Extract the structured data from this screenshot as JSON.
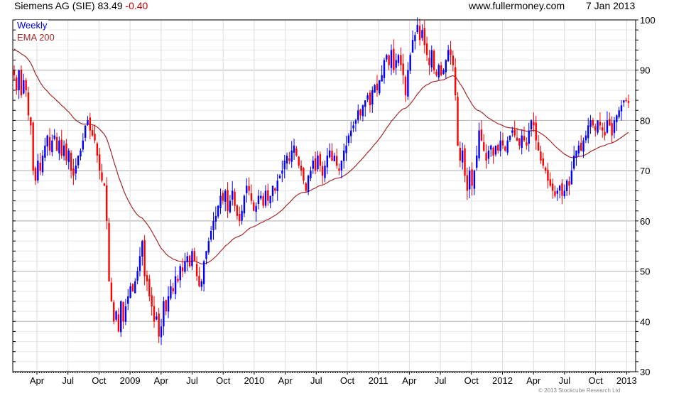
{
  "header": {
    "title": "Siemens AG (SIE) 83.49",
    "change": "-0.40",
    "site": "www.fullermoney.com",
    "date": "7 Jan 2013"
  },
  "legend": {
    "frequency": "Weekly",
    "indicator": "EMA 200"
  },
  "footer": {
    "copyright": "© 2013 Stockcube Research Ltd"
  },
  "colors": {
    "up": "#0000ff",
    "down": "#ff0000",
    "ema": "#a52a2a",
    "change": "#cc0000"
  },
  "chart_data": {
    "type": "candlestick",
    "title": "Siemens AG (SIE) weekly",
    "ylim": [
      30,
      100
    ],
    "y_ticks": [
      30,
      40,
      50,
      60,
      70,
      80,
      90,
      100
    ],
    "y_minor_step": 2,
    "x_tick_labels": [
      "Apr",
      "Jul",
      "Oct",
      "2009",
      "Apr",
      "Jul",
      "Oct",
      "2010",
      "Apr",
      "Jul",
      "Oct",
      "2011",
      "Apr",
      "Jul",
      "Oct",
      "2012",
      "Apr",
      "Jul",
      "Oct",
      "2013"
    ],
    "grid": true,
    "ema_period_weeks": 40,
    "ema_seed": 94.5,
    "closes": [
      89,
      86,
      90,
      85,
      88,
      86,
      81,
      79,
      70,
      68,
      72,
      70,
      73,
      75,
      77,
      74,
      76,
      77,
      74,
      76,
      73,
      75,
      72,
      74,
      70,
      69,
      71,
      73,
      74,
      76,
      79,
      80,
      78,
      77,
      76,
      73,
      70,
      68,
      67,
      60,
      48,
      44,
      40,
      42,
      38,
      44,
      40,
      43,
      45,
      47,
      46,
      48,
      50,
      53,
      56,
      49,
      48,
      45,
      43,
      40,
      41,
      37,
      39,
      44,
      42,
      45,
      47,
      46,
      49,
      48,
      51,
      50,
      52,
      53,
      51,
      54,
      52,
      49,
      47,
      48,
      52,
      54,
      56,
      58,
      60,
      61,
      63,
      65,
      64,
      66,
      62,
      64,
      66,
      63,
      61,
      60,
      62,
      65,
      67,
      66,
      64,
      62,
      63,
      65,
      65,
      63,
      66,
      64,
      65,
      67,
      66,
      68,
      69,
      70,
      72,
      73,
      72,
      74,
      75,
      73,
      71,
      70,
      68,
      66,
      69,
      70,
      72,
      70,
      73,
      71,
      69,
      71,
      73,
      74,
      72,
      73,
      71,
      70,
      72,
      74,
      75,
      77,
      78,
      79,
      80,
      82,
      81,
      83,
      84,
      85,
      83,
      86,
      87,
      86,
      88,
      89,
      92,
      93,
      91,
      94,
      90,
      92,
      93,
      91,
      89,
      85,
      90,
      93,
      96,
      97,
      99,
      96,
      98,
      95,
      93,
      91,
      94,
      90,
      89,
      91,
      89,
      90,
      92,
      94,
      93,
      91,
      85,
      75,
      72,
      74,
      69,
      66,
      70,
      67,
      70,
      73,
      78,
      76,
      74,
      72,
      74,
      75,
      73,
      75,
      74,
      76,
      75,
      74,
      76,
      77,
      78,
      77,
      76,
      75,
      77,
      76,
      75,
      78,
      80,
      79,
      76,
      74,
      72,
      71,
      70,
      68,
      67,
      66,
      65,
      66,
      67,
      65,
      66,
      68,
      67,
      70,
      73,
      74,
      75,
      74,
      76,
      77,
      79,
      80,
      79,
      78,
      80,
      79,
      78,
      77,
      80,
      79,
      77,
      80,
      81,
      82,
      83,
      84,
      83.89,
      83.49
    ]
  }
}
